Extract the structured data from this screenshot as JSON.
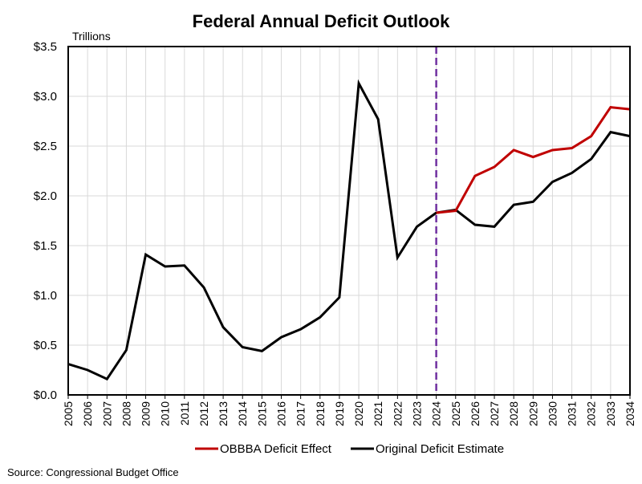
{
  "chart_data": {
    "type": "line",
    "title": "Federal Annual Deficit Outlook",
    "unit_label": "Trillions",
    "xlabel": "",
    "ylabel": "Trillions",
    "ylim": [
      0,
      3.5
    ],
    "yticks": [
      0,
      0.5,
      1.0,
      1.5,
      2.0,
      2.5,
      3.0,
      3.5
    ],
    "ytick_labels": [
      "$0.0",
      "$0.5",
      "$1.0",
      "$1.5",
      "$2.0",
      "$2.5",
      "$3.0",
      "$3.5"
    ],
    "x": [
      2005,
      2006,
      2007,
      2008,
      2009,
      2010,
      2011,
      2012,
      2013,
      2014,
      2015,
      2016,
      2017,
      2018,
      2019,
      2020,
      2021,
      2022,
      2023,
      2024,
      2025,
      2026,
      2027,
      2028,
      2029,
      2030,
      2031,
      2032,
      2033,
      2034
    ],
    "xlim": [
      2005,
      2034
    ],
    "grid": true,
    "vertical_marker": {
      "x": 2024,
      "style": "dashed",
      "color": "#7030a0"
    },
    "series": [
      {
        "name": "OBBBA Deficit Effect",
        "color": "#c00000",
        "x": [
          2024,
          2025,
          2026,
          2027,
          2028,
          2029,
          2030,
          2031,
          2032,
          2033,
          2034
        ],
        "values": [
          1.83,
          1.85,
          2.2,
          2.29,
          2.46,
          2.39,
          2.46,
          2.48,
          2.6,
          2.89,
          2.87
        ]
      },
      {
        "name": "Original Deficit Estimate",
        "color": "#000000",
        "x": [
          2005,
          2006,
          2007,
          2008,
          2009,
          2010,
          2011,
          2012,
          2013,
          2014,
          2015,
          2016,
          2017,
          2018,
          2019,
          2020,
          2021,
          2022,
          2023,
          2024,
          2025,
          2026,
          2027,
          2028,
          2029,
          2030,
          2031,
          2032,
          2033,
          2034
        ],
        "values": [
          0.31,
          0.25,
          0.16,
          0.45,
          1.41,
          1.29,
          1.3,
          1.08,
          0.68,
          0.48,
          0.44,
          0.58,
          0.66,
          0.78,
          0.98,
          3.13,
          2.77,
          1.38,
          1.69,
          1.83,
          1.86,
          1.71,
          1.69,
          1.91,
          1.94,
          2.14,
          2.23,
          2.37,
          2.64,
          2.6
        ]
      }
    ],
    "legend": {
      "placement": "bottom-center",
      "entries": [
        "OBBBA Deficit Effect",
        "Original Deficit Estimate"
      ]
    },
    "source": "Source: Congressional Budget Office"
  }
}
